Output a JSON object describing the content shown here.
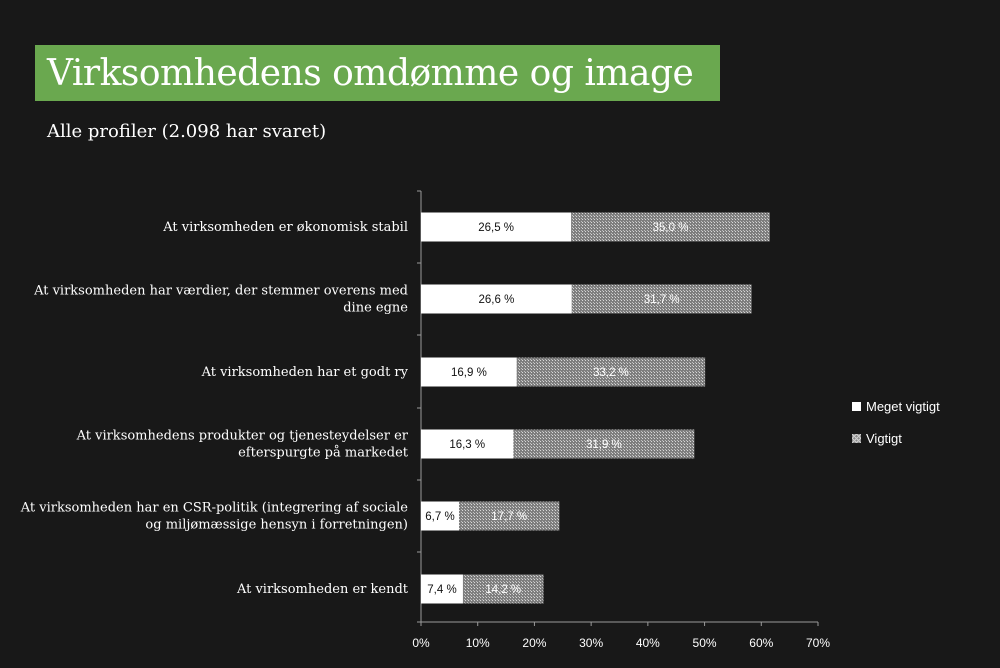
{
  "title": "Virksomhedens omdømme og image",
  "subtitle": "Alle profiler (2.098 har svaret)",
  "colors": {
    "title_bar": "#6aa84f",
    "background": "#181818",
    "series1": "#ffffff",
    "series2": "#9a9a9a"
  },
  "legend": {
    "items": [
      "Meget vigtigt",
      "Vigtigt"
    ]
  },
  "chart_data": {
    "type": "bar",
    "orientation": "horizontal",
    "stacked": true,
    "categories": [
      [
        "At virksomheden er økonomisk stabil"
      ],
      [
        "At virksomheden har værdier, der stemmer overens med",
        "dine egne"
      ],
      [
        "At virksomheden har et godt ry"
      ],
      [
        "At virksomhedens produkter og tjenesteydelser er",
        "efterspurgte på markedet"
      ],
      [
        "At virksomheden har en CSR-politik (integrering af sociale",
        "og miljømæssige hensyn i forretningen)"
      ],
      [
        "At virksomheden er kendt"
      ]
    ],
    "series": [
      {
        "name": "Meget vigtigt",
        "values": [
          26.5,
          26.6,
          16.9,
          16.3,
          6.7,
          7.4
        ],
        "labels": [
          "26,5 %",
          "26,6 %",
          "16,9 %",
          "16,3 %",
          "6,7 %",
          "7,4 %"
        ]
      },
      {
        "name": "Vigtigt",
        "values": [
          35.0,
          31.7,
          33.2,
          31.9,
          17.7,
          14.2
        ],
        "labels": [
          "35,0 %",
          "31,7 %",
          "33,2 %",
          "31,9 %",
          "17,7 %",
          "14,2 %"
        ]
      }
    ],
    "xlim": [
      0,
      70
    ],
    "xticks": [
      0,
      10,
      20,
      30,
      40,
      50,
      60,
      70
    ],
    "xtick_labels": [
      "0%",
      "10%",
      "20%",
      "30%",
      "40%",
      "50%",
      "60%",
      "70%"
    ],
    "legend_position": "right",
    "grid": false
  }
}
